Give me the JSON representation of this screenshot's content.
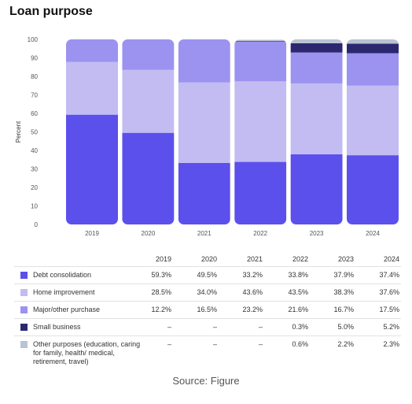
{
  "title": "Loan purpose",
  "source": "Source: Figure",
  "table": {
    "years": [
      "2019",
      "2020",
      "2021",
      "2022",
      "2023",
      "2024"
    ],
    "rows": [
      {
        "name": "Debt consolidation",
        "color": "#5b50ec",
        "cells": [
          "59.3%",
          "49.5%",
          "33.2%",
          "33.8%",
          "37.9%",
          "37.4%"
        ]
      },
      {
        "name": "Home improvement",
        "color": "#c2bcf2",
        "cells": [
          "28.5%",
          "34.0%",
          "43.6%",
          "43.5%",
          "38.3%",
          "37.6%"
        ]
      },
      {
        "name": "Major/other purchase",
        "color": "#9c92f0",
        "cells": [
          "12.2%",
          "16.5%",
          "23.2%",
          "21.6%",
          "16.7%",
          "17.5%"
        ]
      },
      {
        "name": "Small business",
        "color": "#2b2870",
        "cells": [
          "–",
          "–",
          "–",
          "0.3%",
          "5.0%",
          "5.2%"
        ]
      },
      {
        "name": "Other purposes (education, caring for family, health/ medical, retirement, travel)",
        "color": "#b8c4d2",
        "cells": [
          "–",
          "–",
          "–",
          "0.6%",
          "2.2%",
          "2.3%"
        ]
      }
    ]
  },
  "chart_data": {
    "type": "bar",
    "stacked": true,
    "title": "Loan purpose",
    "ylabel": "Percent",
    "xlabel": "",
    "ylim": [
      0,
      100
    ],
    "yticks": [
      0,
      10,
      20,
      30,
      40,
      50,
      60,
      70,
      80,
      90,
      100
    ],
    "categories": [
      "2019",
      "2020",
      "2021",
      "2022",
      "2023",
      "2024"
    ],
    "series": [
      {
        "name": "Debt consolidation",
        "color": "#5b50ec",
        "values": [
          59.3,
          49.5,
          33.2,
          33.8,
          37.9,
          37.4
        ]
      },
      {
        "name": "Home improvement",
        "color": "#c2bcf2",
        "values": [
          28.5,
          34.0,
          43.6,
          43.5,
          38.3,
          37.6
        ]
      },
      {
        "name": "Major/other purchase",
        "color": "#9c92f0",
        "values": [
          12.2,
          16.5,
          23.2,
          21.6,
          16.7,
          17.5
        ]
      },
      {
        "name": "Small business",
        "color": "#2b2870",
        "values": [
          0,
          0,
          0,
          0.3,
          5.0,
          5.2
        ]
      },
      {
        "name": "Other purposes (education, caring for family, health/ medical, retirement, travel)",
        "color": "#b8c4d2",
        "values": [
          0,
          0,
          0,
          0.6,
          2.2,
          2.3
        ]
      }
    ],
    "legend": "table-below",
    "grid": false
  }
}
